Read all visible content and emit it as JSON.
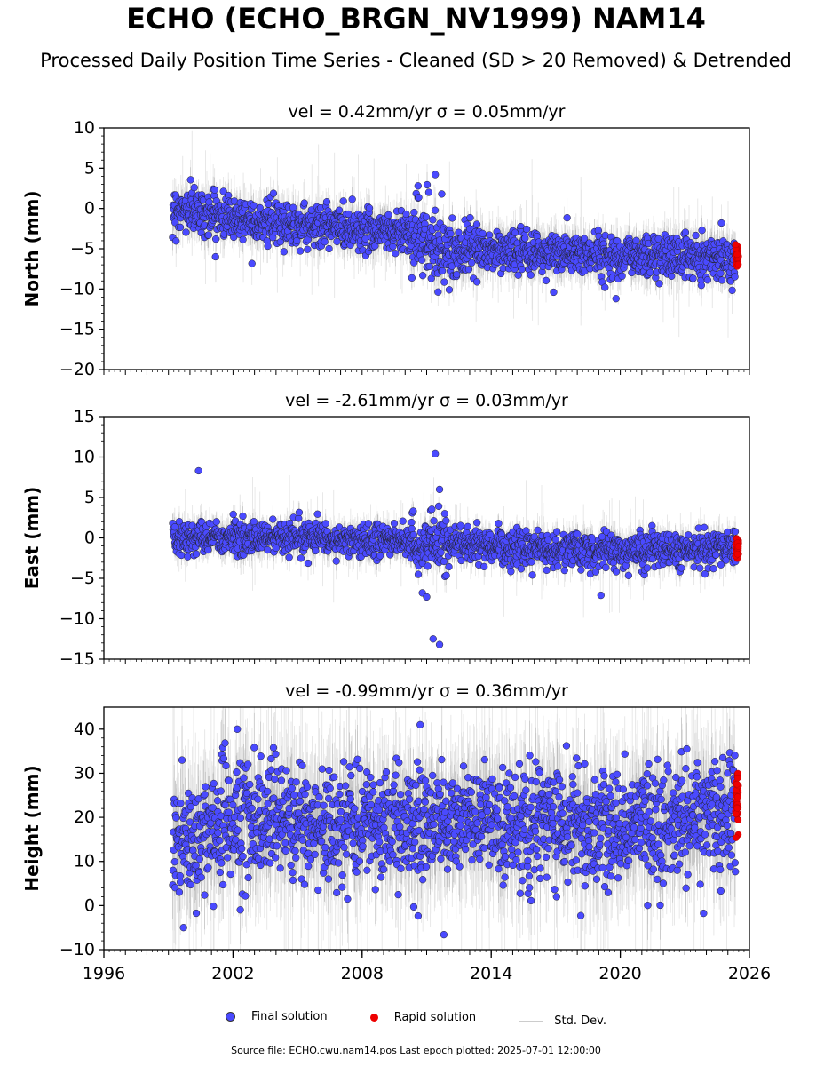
{
  "title": "ECHO (ECHO_BRGN_NV1999) NAM14",
  "subtitle": "Processed Daily Position Time Series - Cleaned (SD > 20 Removed) & Detrended",
  "chart_data": [
    {
      "type": "scatter",
      "title": "vel = 0.42mm/yr   σ = 0.05mm/yr",
      "ylabel": "North (mm)",
      "xlabel": "",
      "xlim": [
        1996,
        2026
      ],
      "ylim": [
        -20,
        10
      ],
      "yticks": [
        -20,
        -15,
        -10,
        -5,
        0,
        5,
        10
      ],
      "trend": [
        [
          1999.2,
          0.0
        ],
        [
          2004,
          -1.8
        ],
        [
          2010.5,
          -3.0
        ],
        [
          2011.2,
          -5.0
        ],
        [
          2016,
          -5.5
        ],
        [
          2020,
          -5.8
        ],
        [
          2025.5,
          -6.0
        ]
      ],
      "scatter_sd": 1.3,
      "outliers": [
        [
          2010.6,
          2.8
        ],
        [
          2011.1,
          2.0
        ],
        [
          2011.4,
          4.2
        ],
        [
          2011.7,
          1.8
        ],
        [
          2019.8,
          -11.2
        ],
        [
          2016.9,
          -10.4
        ],
        [
          2000.2,
          2.6
        ]
      ],
      "rapid_center": -5.8
    },
    {
      "type": "scatter",
      "title": "vel = -2.61mm/yr   σ = 0.03mm/yr",
      "ylabel": "East (mm)",
      "xlabel": "",
      "xlim": [
        1996,
        2026
      ],
      "ylim": [
        -15,
        15
      ],
      "yticks": [
        -15,
        -10,
        -5,
        0,
        5,
        10,
        15
      ],
      "trend": [
        [
          1999.2,
          0.0
        ],
        [
          2005,
          0.0
        ],
        [
          2010,
          -0.5
        ],
        [
          2016,
          -1.3
        ],
        [
          2020,
          -1.6
        ],
        [
          2025.5,
          -1.2
        ]
      ],
      "scatter_sd": 1.0,
      "outliers": [
        [
          2000.4,
          8.3
        ],
        [
          2011.4,
          10.4
        ],
        [
          2011.6,
          6.0
        ],
        [
          2011.3,
          -12.5
        ],
        [
          2011.6,
          -13.2
        ],
        [
          2019.1,
          -7.1
        ],
        [
          2010.8,
          -6.8
        ],
        [
          2011.0,
          -7.3
        ]
      ],
      "rapid_center": -1.0
    },
    {
      "type": "scatter",
      "title": "vel = -0.99mm/yr   σ = 0.36mm/yr",
      "ylabel": "Height (mm)",
      "xlabel": "",
      "xlim": [
        1996,
        2026
      ],
      "ylim": [
        -10,
        45
      ],
      "yticks": [
        -10,
        0,
        10,
        20,
        30,
        40
      ],
      "xticks": [
        1996,
        2002,
        2008,
        2014,
        2020,
        2026
      ],
      "trend": [
        [
          1999.2,
          14.0
        ],
        [
          2002,
          20.0
        ],
        [
          2008,
          18.0
        ],
        [
          2014,
          19.0
        ],
        [
          2020,
          17.0
        ],
        [
          2025.5,
          22.0
        ]
      ],
      "scatter_sd": 6.5,
      "outliers": [
        [
          2010.7,
          41.0
        ],
        [
          2011.8,
          -6.6
        ],
        [
          2010.4,
          -0.3
        ],
        [
          1999.7,
          -5.0
        ],
        [
          2002.2,
          40.0
        ]
      ],
      "rapid_center": 24.0
    }
  ],
  "legend": {
    "final": "Final solution",
    "rapid": "Rapid solution",
    "sd": "Std. Dev."
  },
  "colors": {
    "final": "#4a4aff",
    "rapid": "#ee0000",
    "sd": "#cccccc"
  },
  "footer": "Source file: ECHO.cwu.nam14.pos  Last epoch plotted: 2025-07-01 12:00:00"
}
